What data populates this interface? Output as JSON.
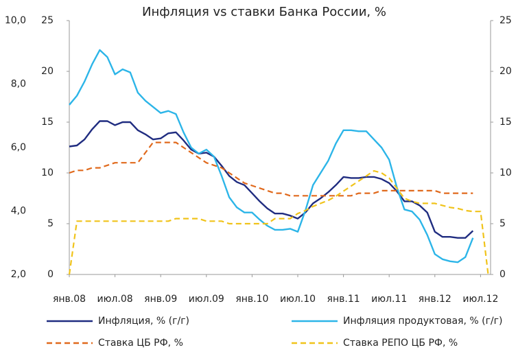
{
  "chart_data": {
    "type": "line",
    "title": "Инфляция vs ставки Банка России, %",
    "categories": [
      "янв.08",
      null,
      null,
      null,
      null,
      null,
      "июл.08",
      null,
      null,
      null,
      null,
      null,
      "янв.09",
      null,
      null,
      null,
      null,
      null,
      "июл.09",
      null,
      null,
      null,
      null,
      null,
      "янв.10",
      null,
      null,
      null,
      null,
      null,
      "июл.10",
      null,
      null,
      null,
      null,
      null,
      "янв.11",
      null,
      null,
      null,
      null,
      null,
      "июл.11",
      null,
      null,
      null,
      null,
      null,
      "янв.12",
      null,
      null,
      null,
      null,
      null,
      "июл.12",
      null
    ],
    "series": [
      {
        "name": "Инфляция, % (г/г)",
        "color": "#1f2c80",
        "dash": false,
        "values": [
          12.6,
          12.7,
          13.3,
          14.3,
          15.1,
          15.1,
          14.7,
          15.0,
          15.0,
          14.2,
          13.8,
          13.3,
          13.4,
          13.9,
          14.0,
          13.2,
          12.3,
          11.9,
          12.0,
          11.6,
          10.7,
          9.7,
          9.1,
          8.8,
          8.0,
          7.2,
          6.5,
          6.0,
          6.0,
          5.8,
          5.5,
          6.1,
          7.0,
          7.5,
          8.1,
          8.8,
          9.6,
          9.5,
          9.5,
          9.6,
          9.6,
          9.4,
          9.0,
          8.2,
          7.2,
          7.2,
          6.8,
          6.1,
          4.2,
          3.7,
          3.7,
          3.6,
          3.6,
          4.3,
          null,
          null
        ]
      },
      {
        "name": "Инфляция продуктовая, % (г/г)",
        "color": "#2cb5e8",
        "dash": false,
        "values": [
          16.7,
          17.6,
          19.0,
          20.7,
          22.1,
          21.4,
          19.7,
          20.2,
          19.9,
          17.9,
          17.1,
          16.5,
          15.9,
          16.1,
          15.8,
          14.0,
          12.5,
          11.9,
          12.3,
          11.6,
          9.7,
          7.6,
          6.6,
          6.1,
          6.1,
          5.4,
          4.8,
          4.4,
          4.4,
          4.5,
          4.2,
          6.3,
          8.8,
          10.0,
          11.2,
          12.9,
          14.2,
          14.2,
          14.1,
          14.1,
          13.3,
          12.5,
          11.3,
          8.6,
          6.4,
          6.2,
          5.4,
          3.9,
          2.0,
          1.5,
          1.3,
          1.2,
          1.7,
          3.6,
          null,
          null
        ]
      },
      {
        "name": "Ставка ЦБ РФ, %",
        "color": "#e0691c",
        "dash": true,
        "values": [
          10,
          10.25,
          10.25,
          10.5,
          10.5,
          10.75,
          11,
          11,
          11,
          11,
          12,
          13,
          13,
          13,
          13,
          12.5,
          12,
          11.5,
          11,
          10.75,
          10.5,
          10,
          9.5,
          9,
          8.75,
          8.5,
          8.25,
          8,
          8,
          7.75,
          7.75,
          7.75,
          7.75,
          7.75,
          7.75,
          7.75,
          7.75,
          7.75,
          8,
          8,
          8,
          8.25,
          8.25,
          8.25,
          8.25,
          8.25,
          8.25,
          8.25,
          8.25,
          8,
          8,
          8,
          8,
          8,
          null,
          null
        ]
      },
      {
        "name": "Ставка РЕПО ЦБ РФ, %",
        "color": "#f0c31a",
        "dash": true,
        "values": [
          0,
          5.25,
          5.25,
          5.25,
          5.25,
          5.25,
          5.25,
          5.25,
          5.25,
          5.25,
          5.25,
          5.25,
          5.25,
          5.25,
          5.5,
          5.5,
          5.5,
          5.5,
          5.25,
          5.25,
          5.25,
          5,
          5,
          5,
          5,
          5,
          5,
          5.5,
          5.5,
          5.5,
          6,
          6.3,
          6.7,
          7,
          7.3,
          7.7,
          8.2,
          8.7,
          9.2,
          9.7,
          10.2,
          10,
          9.5,
          8.5,
          7.5,
          7.2,
          7,
          7,
          7,
          6.8,
          6.6,
          6.5,
          6.3,
          6.2,
          6.2,
          0
        ]
      }
    ],
    "ylim": [
      0,
      25
    ],
    "yticks": [
      0,
      5,
      10,
      15,
      20,
      25
    ],
    "y2lim": [
      0,
      25
    ],
    "y2ticks": [
      0,
      5,
      10,
      15,
      20,
      25
    ],
    "y3lim": [
      2,
      10
    ],
    "y3ticks": [
      {
        "value": 2,
        "label": "2,0"
      },
      {
        "value": 4,
        "label": "4,0"
      },
      {
        "value": 6,
        "label": "6,0"
      },
      {
        "value": 8,
        "label": "8,0"
      },
      {
        "value": 10,
        "label": "10,0"
      }
    ],
    "grid": false
  }
}
